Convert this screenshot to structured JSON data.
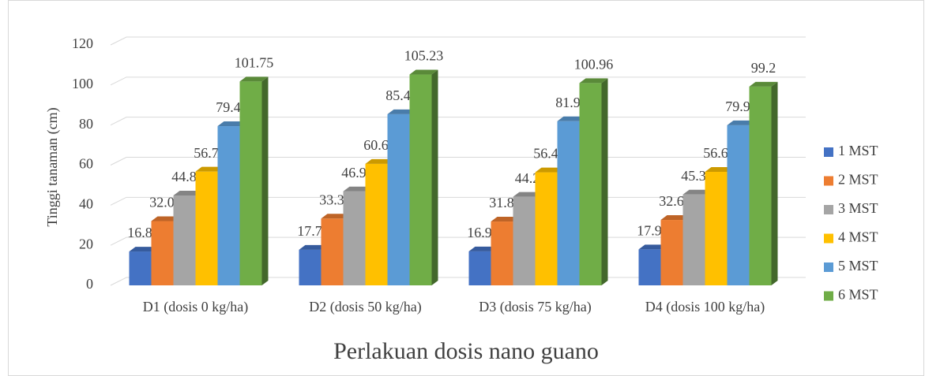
{
  "chart_data": {
    "type": "bar3d",
    "y_axis_label": "Tinggi tanaman (cm)",
    "x_axis_label": "Perlakuan dosis nano guano",
    "categories": [
      "D1 (dosis 0 kg/ha)",
      "D2 (dosis 50 kg/ha)",
      "D3 (dosis 75 kg/ha)",
      "D4 (dosis 100 kg/ha)"
    ],
    "series": [
      {
        "name": "1 MST",
        "color": "#4472c4",
        "values": [
          16.89,
          17.77,
          16.98,
          17.93
        ]
      },
      {
        "name": "2 MST",
        "color": "#ed7d31",
        "values": [
          32.06,
          33.34,
          31.85,
          32.64
        ]
      },
      {
        "name": "3 MST",
        "color": "#a5a5a5",
        "values": [
          44.85,
          46.92,
          44.2,
          45.33
        ]
      },
      {
        "name": "4 MST",
        "color": "#ffc000",
        "values": [
          56.79,
          60.66,
          56.43,
          56.67
        ]
      },
      {
        "name": "5 MST",
        "color": "#5b9bd5",
        "values": [
          79.46,
          85.42,
          81.92,
          79.92
        ]
      },
      {
        "name": "6 MST",
        "color": "#70ad47",
        "values": [
          101.75,
          105.23,
          100.96,
          99.2
        ]
      }
    ],
    "ylim": [
      0,
      120
    ],
    "yticks": [
      0,
      20,
      40,
      60,
      80,
      100,
      120
    ],
    "grid": true,
    "legend": "right"
  }
}
